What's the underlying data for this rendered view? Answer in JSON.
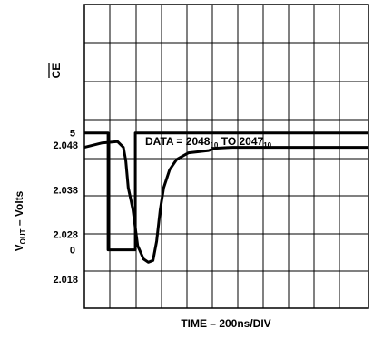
{
  "chart_data": [
    {
      "type": "line",
      "panel": "ce",
      "ylabel": "CE",
      "ylabel_overbar": true,
      "yticks": [
        5,
        0
      ],
      "ylim": [
        -2.5,
        10.5
      ],
      "x_unit": "ns",
      "series": [
        {
          "points": [
            {
              "x": 0,
              "y": 5
            },
            {
              "x": 200,
              "y": 5
            },
            {
              "x": 200,
              "y": 0
            },
            {
              "x": 430,
              "y": 0
            },
            {
              "x": 430,
              "y": 5
            },
            {
              "x": 2400,
              "y": 5
            }
          ]
        }
      ]
    },
    {
      "type": "line",
      "panel": "vout",
      "ylabel_main": "V",
      "ylabel_sub": "OUT",
      "ylabel_rest": " – Volts",
      "yticks": [
        "2.048",
        "2.038",
        "2.028",
        "2.018"
      ],
      "ylim": [
        2.0115,
        2.0795
      ],
      "annotation": {
        "prefix": "DATA = 2048",
        "sub1": "10",
        "middle": " TO 2047",
        "sub2": "10"
      },
      "x_unit": "ns",
      "series": [
        {
          "points": [
            {
              "x": 0,
              "y": 2.0475
            },
            {
              "x": 150,
              "y": 2.0485
            },
            {
              "x": 280,
              "y": 2.0488
            },
            {
              "x": 330,
              "y": 2.0475
            },
            {
              "x": 350,
              "y": 2.0445
            },
            {
              "x": 370,
              "y": 2.0385
            },
            {
              "x": 395,
              "y": 2.0355
            },
            {
              "x": 410,
              "y": 2.0335
            },
            {
              "x": 450,
              "y": 2.0255
            },
            {
              "x": 500,
              "y": 2.0225
            },
            {
              "x": 540,
              "y": 2.0218
            },
            {
              "x": 580,
              "y": 2.0222
            },
            {
              "x": 610,
              "y": 2.0265
            },
            {
              "x": 640,
              "y": 2.0335
            },
            {
              "x": 670,
              "y": 2.0385
            },
            {
              "x": 720,
              "y": 2.0425
            },
            {
              "x": 780,
              "y": 2.0448
            },
            {
              "x": 880,
              "y": 2.0463
            },
            {
              "x": 1050,
              "y": 2.0468
            },
            {
              "x": 1100,
              "y": 2.0473
            },
            {
              "x": 1250,
              "y": 2.0475
            },
            {
              "x": 2400,
              "y": 2.0475
            }
          ]
        }
      ]
    }
  ],
  "xaxis": {
    "label": "TIME – 200ns/DIV",
    "ns_per_div": 200,
    "divisions": 12,
    "xlim": [
      0,
      2400
    ]
  },
  "grid": true
}
